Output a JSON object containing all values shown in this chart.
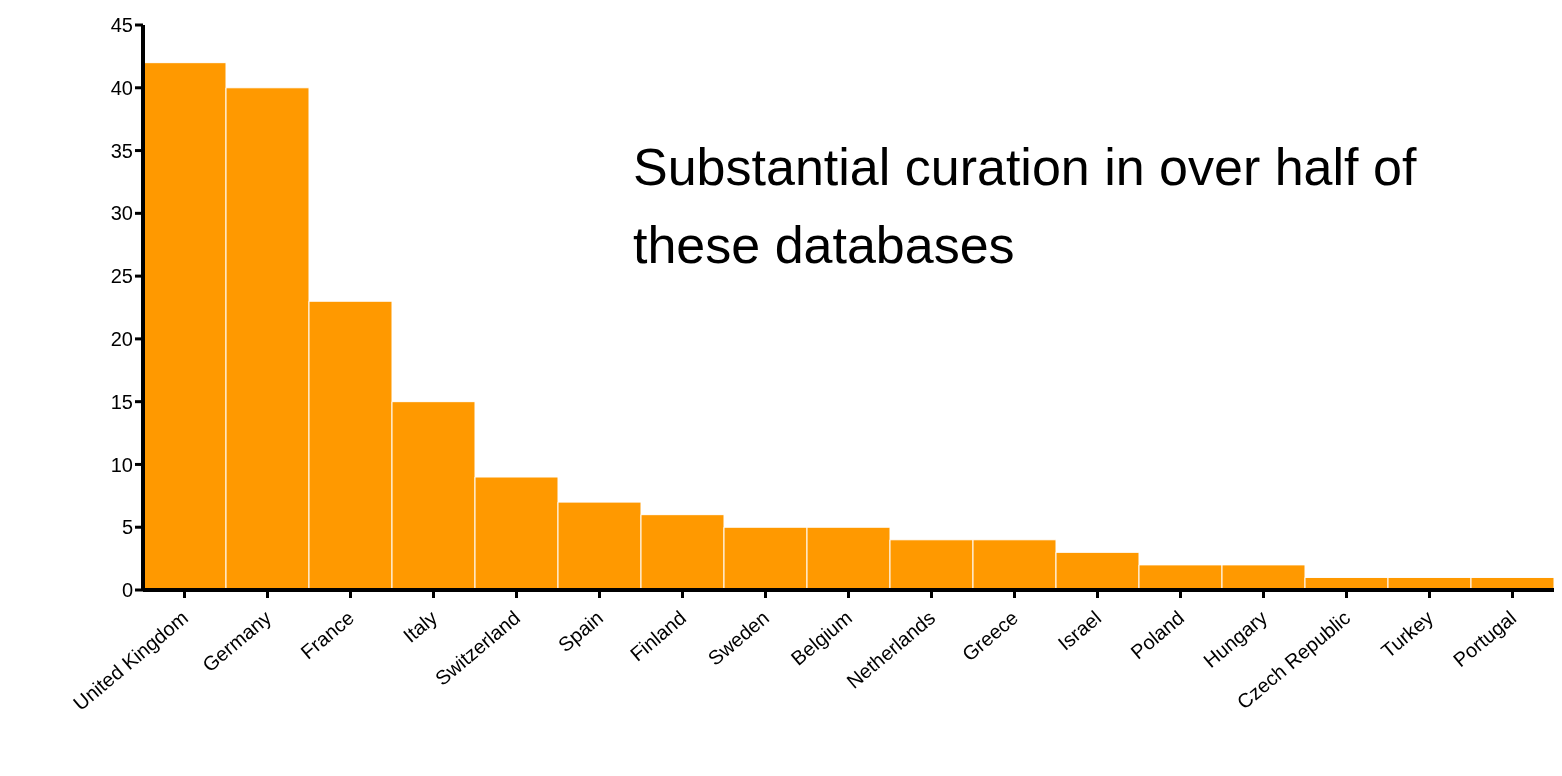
{
  "chart_data": {
    "type": "bar",
    "categories": [
      "United Kingdom",
      "Germany",
      "France",
      "Italy",
      "Switzerland",
      "Spain",
      "Finland",
      "Sweden",
      "Belgium",
      "Netherlands",
      "Greece",
      "Israel",
      "Poland",
      "Hungary",
      "Czech Republic",
      "Turkey",
      "Portugal"
    ],
    "values": [
      42,
      40,
      23,
      15,
      9,
      7,
      6,
      5,
      5,
      4,
      4,
      3,
      2,
      2,
      1,
      1,
      1
    ],
    "color": "#ff9900",
    "ylim": [
      0,
      45
    ],
    "yticks": [
      0,
      5,
      10,
      15,
      20,
      25,
      30,
      35,
      40,
      45
    ],
    "grid": false,
    "annotations": [
      "Substantial curation in over half of these databases"
    ]
  }
}
